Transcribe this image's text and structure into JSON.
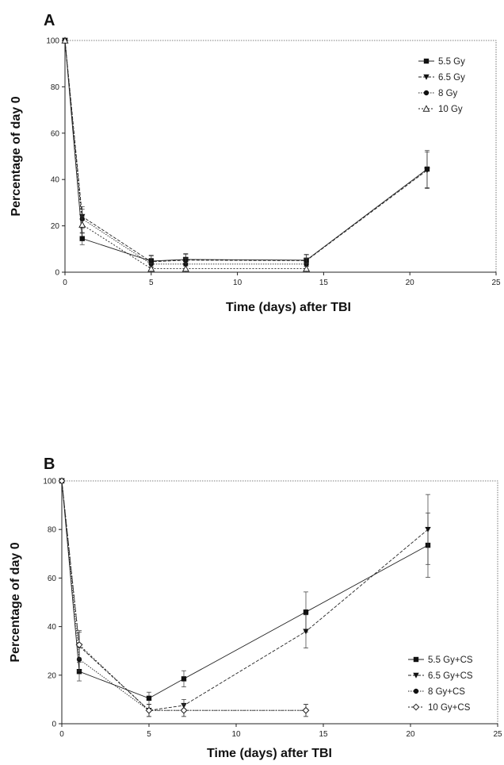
{
  "chart_data": [
    {
      "panel": "A",
      "type": "line",
      "xlabel": "Time (days) after TBI",
      "ylabel": "Percentage of day 0",
      "xlim": [
        0,
        25
      ],
      "ylim": [
        0,
        100
      ],
      "xticks": [
        "0",
        "5",
        "10",
        "15",
        "20",
        "25"
      ],
      "yticks": [
        "0",
        "20",
        "40",
        "60",
        "80",
        "100"
      ],
      "legend_position": "top-right",
      "grid": false,
      "series": [
        {
          "name": "5.5 Gy",
          "marker": "square",
          "x": [
            0,
            1,
            5,
            7,
            14,
            21
          ],
          "y": [
            100,
            14.5,
            4.8,
            5.5,
            5.2,
            44.5
          ]
        },
        {
          "name": "6.5 Gy",
          "marker": "triangle-down",
          "x": [
            0,
            1,
            5,
            7,
            14,
            21
          ],
          "y": [
            100,
            24,
            4.5,
            5.2,
            5,
            44
          ]
        },
        {
          "name": "8 Gy",
          "marker": "circle",
          "x": [
            0,
            1,
            5,
            7,
            14
          ],
          "y": [
            100,
            23,
            3.5,
            3.5,
            3.5
          ]
        },
        {
          "name": "10 Gy",
          "marker": "triangle-up-open",
          "x": [
            0,
            1,
            5,
            7,
            14
          ],
          "y": [
            100,
            20.5,
            1.5,
            1.5,
            1.5
          ]
        }
      ]
    },
    {
      "panel": "B",
      "type": "line",
      "xlabel": "Time (days) after TBI",
      "ylabel": "Percentage of day 0",
      "xlim": [
        0,
        25
      ],
      "ylim": [
        0,
        100
      ],
      "xticks": [
        "0",
        "5",
        "10",
        "15",
        "20",
        "25"
      ],
      "yticks": [
        "0",
        "20",
        "40",
        "60",
        "80",
        "100"
      ],
      "legend_position": "bottom-right",
      "grid": false,
      "series": [
        {
          "name": "5.5 Gy+CS",
          "marker": "square",
          "x": [
            0,
            1,
            5,
            7,
            14,
            21
          ],
          "y": [
            100,
            21.5,
            10.5,
            18.5,
            46,
            73.5
          ]
        },
        {
          "name": "6.5 Gy+CS",
          "marker": "triangle-down",
          "x": [
            0,
            1,
            5,
            7,
            14,
            21
          ],
          "y": [
            100,
            32,
            5.5,
            7.5,
            38,
            80
          ]
        },
        {
          "name": "8 Gy+CS",
          "marker": "circle",
          "x": [
            0,
            1,
            5,
            7,
            14
          ],
          "y": [
            100,
            26.5,
            5.5,
            5.5,
            5.5
          ]
        },
        {
          "name": "10 Gy+CS",
          "marker": "diamond-open",
          "x": [
            0,
            1,
            5,
            7,
            14
          ],
          "y": [
            100,
            32.5,
            5.5,
            5.5,
            5.5
          ]
        }
      ]
    }
  ]
}
